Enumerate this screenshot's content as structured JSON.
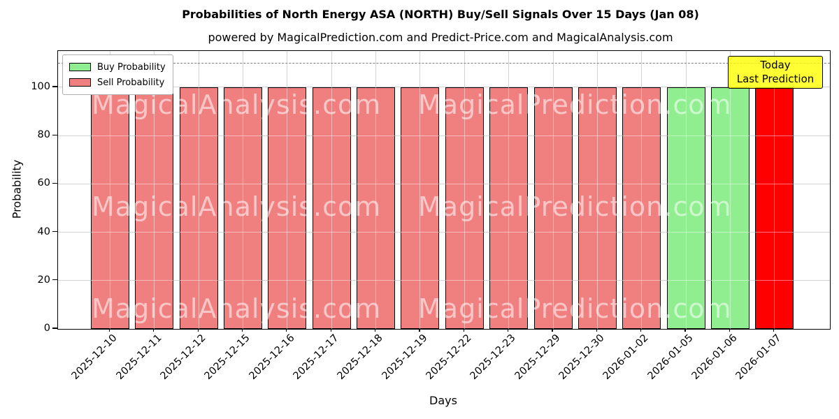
{
  "header": {
    "title": "Probabilities of North Energy ASA (NORTH) Buy/Sell Signals Over 15 Days (Jan 08)",
    "subtitle": "powered by MagicalPrediction.com and Predict-Price.com and MagicalAnalysis.com"
  },
  "axes": {
    "ylabel": "Probability",
    "xlabel": "Days",
    "yticks": [
      0,
      20,
      40,
      60,
      80,
      100
    ],
    "ylim": [
      0,
      115
    ]
  },
  "legend": {
    "items": [
      {
        "label": "Buy Probability",
        "color": "#90EE90"
      },
      {
        "label": "Sell Probability",
        "color": "#F08080"
      }
    ]
  },
  "annotation": {
    "line1": "Today",
    "line2": "Last Prediction",
    "bg_color": "#FFFF00"
  },
  "threshold_line": {
    "y": 110,
    "style": "dashed",
    "color": "#7f7f7f"
  },
  "watermarks": [
    {
      "text": "MagicalAnalysis.com"
    },
    {
      "text": "MagicalPrediction.com"
    }
  ],
  "chart_data": {
    "type": "bar",
    "title": "Probabilities of North Energy ASA (NORTH) Buy/Sell Signals Over 15 Days (Jan 08)",
    "xlabel": "Days",
    "ylabel": "Probability",
    "ylim": [
      0,
      115
    ],
    "grid": true,
    "legend_position": "upper left",
    "categories": [
      "2025-12-10",
      "2025-12-11",
      "2025-12-12",
      "2025-12-15",
      "2025-12-16",
      "2025-12-17",
      "2025-12-18",
      "2025-12-19",
      "2025-12-22",
      "2025-12-23",
      "2025-12-29",
      "2025-12-30",
      "2026-01-02",
      "2026-01-05",
      "2026-01-06",
      "2026-01-07"
    ],
    "series": [
      {
        "name": "Buy Probability",
        "color": "#90EE90",
        "values": [
          0,
          0,
          0,
          0,
          0,
          0,
          0,
          0,
          0,
          0,
          0,
          0,
          0,
          100,
          100,
          0
        ]
      },
      {
        "name": "Sell Probability",
        "color": "#F08080",
        "values": [
          100,
          100,
          100,
          100,
          100,
          100,
          100,
          100,
          100,
          100,
          100,
          100,
          100,
          0,
          0,
          0
        ]
      },
      {
        "name": "Today Last Prediction (Sell)",
        "color": "#FF0000",
        "values": [
          0,
          0,
          0,
          0,
          0,
          0,
          0,
          0,
          0,
          0,
          0,
          0,
          0,
          0,
          0,
          100
        ]
      }
    ]
  }
}
